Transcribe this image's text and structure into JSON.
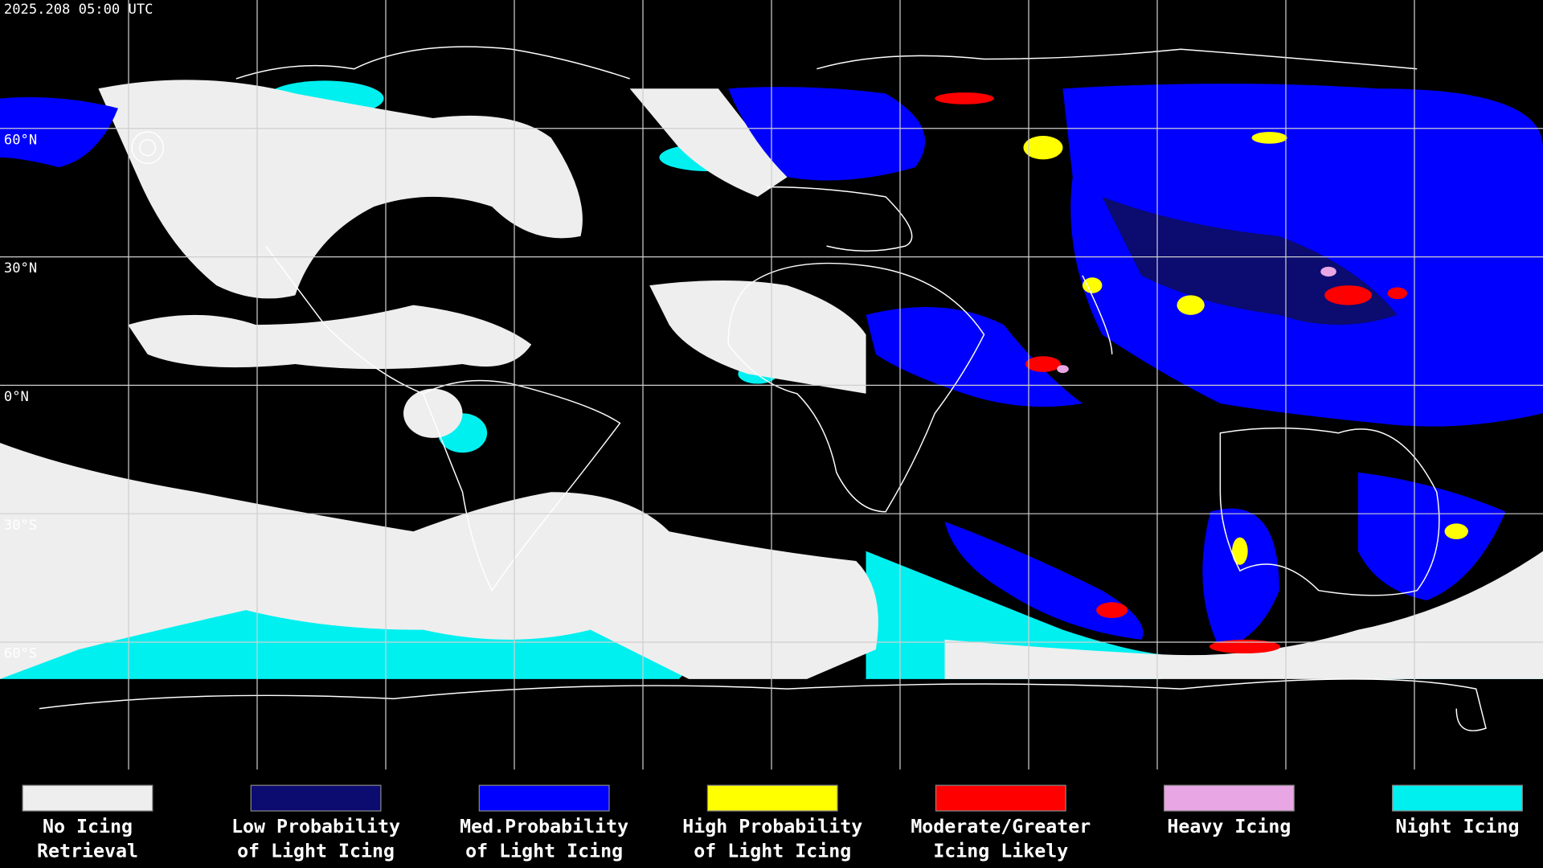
{
  "timestamp": "2025.208 05:00 UTC",
  "latitude_labels": [
    "60°N",
    "30°N",
    "0°N",
    "30°S",
    "60°S"
  ],
  "legend": [
    {
      "label_lines": [
        "No Icing",
        "Retrieval"
      ],
      "color": "#eeeeee"
    },
    {
      "label_lines": [
        "Low Probability",
        "of Light Icing"
      ],
      "color": "#0b0b70"
    },
    {
      "label_lines": [
        "Med.Probability",
        "of Light Icing"
      ],
      "color": "#0000ff"
    },
    {
      "label_lines": [
        "High Probability",
        "of Light Icing"
      ],
      "color": "#ffff00"
    },
    {
      "label_lines": [
        "Moderate/Greater",
        "Icing Likely"
      ],
      "color": "#ff0000"
    },
    {
      "label_lines": [
        "Heavy Icing"
      ],
      "color": "#e8a6e4"
    },
    {
      "label_lines": [
        "Night Icing"
      ],
      "color": "#00f0f0"
    }
  ]
}
